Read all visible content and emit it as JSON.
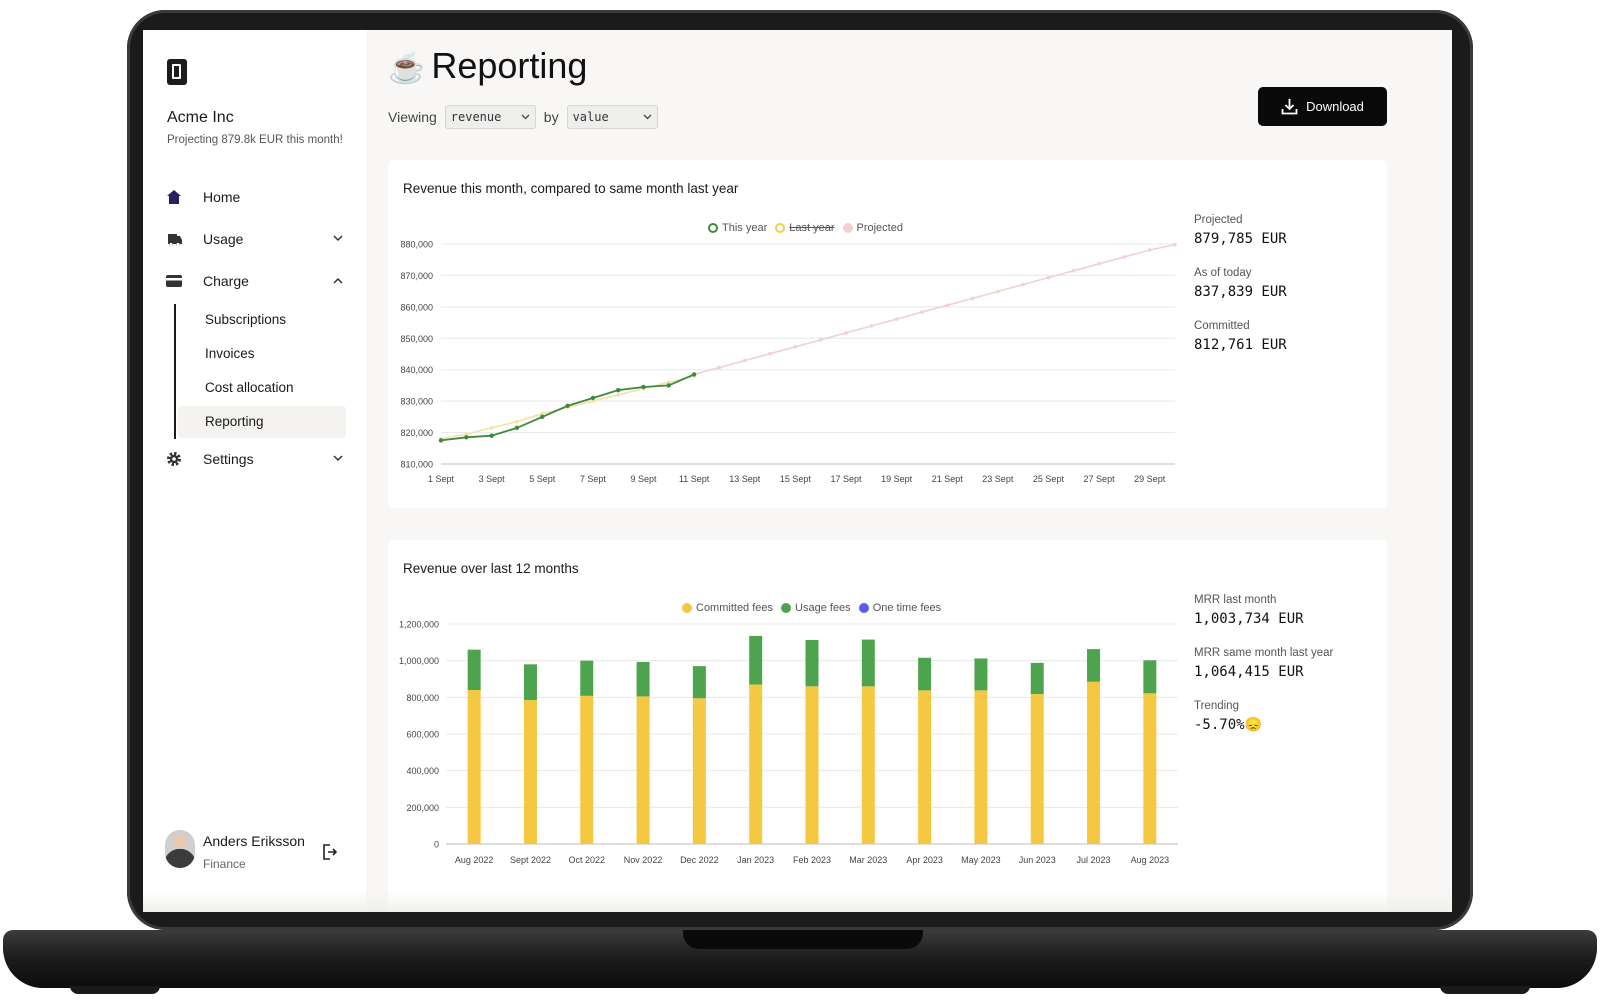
{
  "app": {
    "org_name": "Acme Inc",
    "org_subtitle": "Projecting 879.8k EUR this month!"
  },
  "sidebar": {
    "items": [
      {
        "label": "Home",
        "icon": "home-icon"
      },
      {
        "label": "Usage",
        "icon": "truck-icon"
      },
      {
        "label": "Charge",
        "icon": "card-icon"
      },
      {
        "label": "Settings",
        "icon": "gear-icon"
      }
    ],
    "charge_subitems": [
      "Subscriptions",
      "Invoices",
      "Cost allocation",
      "Reporting"
    ],
    "active": "Reporting"
  },
  "user": {
    "name": "Anders Eriksson",
    "role": "Finance"
  },
  "page": {
    "emoji": "☕",
    "title": "Reporting",
    "viewing_label": "Viewing",
    "metric_select": "revenue",
    "by_label": "by",
    "by_select": "value",
    "download_label": "Download"
  },
  "colors": {
    "this_year": "#3d8a3d",
    "last_year": "#f3e1a6",
    "projected": "#f4cfcf",
    "committed": "#f5c842",
    "usage": "#4ea34e",
    "one_time": "#5b5bf0"
  },
  "card1": {
    "title": "Revenue this month, compared to same month last year",
    "legend": [
      "This year",
      "Last year",
      "Projected"
    ],
    "stats": [
      {
        "label": "Projected",
        "value": "879,785 EUR"
      },
      {
        "label": "As of today",
        "value": "837,839 EUR"
      },
      {
        "label": "Committed",
        "value": "812,761 EUR"
      }
    ]
  },
  "card2": {
    "title": "Revenue over last 12 months",
    "legend": [
      "Committed fees",
      "Usage fees",
      "One time fees"
    ],
    "stats": [
      {
        "label": "MRR last month",
        "value": "1,003,734 EUR"
      },
      {
        "label": "MRR same month last year",
        "value": "1,064,415 EUR"
      },
      {
        "label": "Trending",
        "value": "-5.70%",
        "emoji": "😞"
      }
    ]
  },
  "chart_data": [
    {
      "type": "line",
      "ylim": [
        810000,
        880000
      ],
      "y_ticks": [
        "880,000",
        "870,000",
        "860,000",
        "850,000",
        "840,000",
        "830,000",
        "820,000",
        "810,000"
      ],
      "x_ticks": [
        "1 Sept",
        "3 Sept",
        "5 Sept",
        "7 Sept",
        "9 Sept",
        "11 Sept",
        "13 Sept",
        "15 Sept",
        "17 Sept",
        "19 Sept",
        "21 Sept",
        "23 Sept",
        "25 Sept",
        "27 Sept",
        "29 Sept"
      ],
      "x_range": [
        1,
        30
      ],
      "series": [
        {
          "name": "This year",
          "x": [
            1,
            2,
            3,
            4,
            5,
            6,
            7,
            8,
            9,
            10,
            11
          ],
          "values": [
            817500,
            818500,
            819000,
            821500,
            825000,
            828500,
            831000,
            833500,
            834500,
            835000,
            838500
          ]
        },
        {
          "name": "Last year",
          "x": [
            1,
            2,
            3,
            4,
            5,
            6,
            7,
            8,
            9,
            10,
            11
          ],
          "values": [
            818000,
            819500,
            821500,
            823500,
            826000,
            828000,
            830000,
            832000,
            834000,
            836000,
            838000
          ]
        },
        {
          "name": "Projected",
          "x": [
            11,
            12,
            13,
            14,
            15,
            16,
            17,
            18,
            19,
            20,
            21,
            22,
            23,
            24,
            25,
            26,
            27,
            28,
            29,
            30
          ],
          "values": [
            838500,
            840700,
            842900,
            845100,
            847300,
            849500,
            851700,
            853900,
            856100,
            858300,
            860500,
            862700,
            864900,
            867100,
            869300,
            871500,
            873700,
            875900,
            878100,
            879800
          ]
        }
      ]
    },
    {
      "type": "bar",
      "stacked": true,
      "ylim": [
        0,
        1200000
      ],
      "y_ticks": [
        "1,200,000",
        "1,000,000",
        "800,000",
        "600,000",
        "400,000",
        "200,000",
        "0"
      ],
      "categories": [
        "Aug 2022",
        "Sept 2022",
        "Oct 2022",
        "Nov 2022",
        "Dec 2022",
        "Jan 2023",
        "Feb 2023",
        "Mar 2023",
        "Apr 2023",
        "May 2023",
        "Jun 2023",
        "Jul 2023",
        "Aug 2023"
      ],
      "series": [
        {
          "name": "Committed fees",
          "values": [
            840000,
            785000,
            808000,
            805000,
            795000,
            870000,
            860000,
            860000,
            838000,
            838000,
            818000,
            885000,
            822000
          ]
        },
        {
          "name": "Usage fees",
          "values": [
            220000,
            195000,
            192000,
            188000,
            175000,
            265000,
            253000,
            255000,
            178000,
            174000,
            170000,
            178000,
            180000
          ]
        },
        {
          "name": "One time fees",
          "values": [
            0,
            0,
            0,
            0,
            0,
            0,
            0,
            0,
            0,
            0,
            0,
            0,
            0
          ]
        }
      ]
    }
  ]
}
